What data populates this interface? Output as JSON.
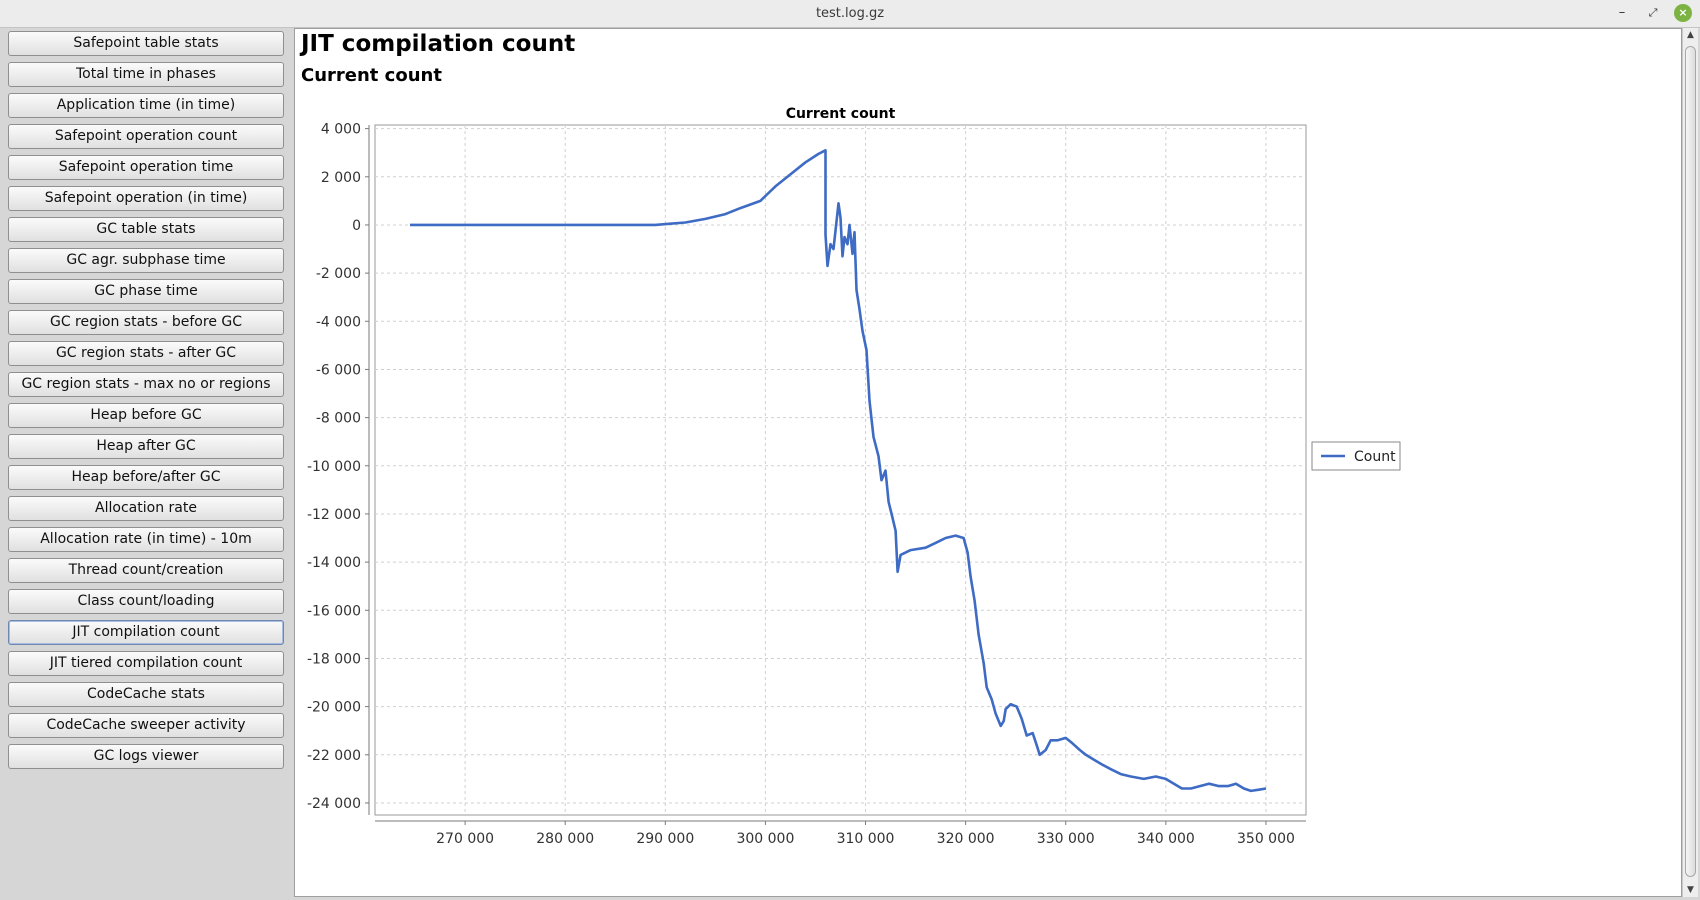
{
  "window": {
    "title": "test.log.gz"
  },
  "sidebar": {
    "items": [
      {
        "label": "Safepoint table stats"
      },
      {
        "label": "Total time in phases"
      },
      {
        "label": "Application time (in time)"
      },
      {
        "label": "Safepoint operation count"
      },
      {
        "label": "Safepoint operation time"
      },
      {
        "label": "Safepoint operation (in time)"
      },
      {
        "label": "GC table stats"
      },
      {
        "label": "GC agr. subphase time"
      },
      {
        "label": "GC phase time"
      },
      {
        "label": "GC region stats - before GC"
      },
      {
        "label": "GC region stats - after GC"
      },
      {
        "label": "GC region stats - max no or regions"
      },
      {
        "label": "Heap before GC"
      },
      {
        "label": "Heap after GC"
      },
      {
        "label": "Heap before/after GC"
      },
      {
        "label": "Allocation rate"
      },
      {
        "label": "Allocation rate (in time) - 10m"
      },
      {
        "label": "Thread count/creation"
      },
      {
        "label": "Class count/loading"
      },
      {
        "label": "JIT compilation count",
        "active": true
      },
      {
        "label": "JIT tiered compilation count"
      },
      {
        "label": "CodeCache stats"
      },
      {
        "label": "CodeCache sweeper activity"
      },
      {
        "label": "GC logs viewer"
      }
    ]
  },
  "main": {
    "title": "JIT compilation count",
    "subtitle": "Current count"
  },
  "chart_data": {
    "type": "line",
    "title": "Current count",
    "xlabel": "",
    "ylabel": "",
    "xlim": [
      261000,
      354000
    ],
    "ylim": [
      -24500,
      4150
    ],
    "x_ticks": [
      270000,
      280000,
      290000,
      300000,
      310000,
      320000,
      330000,
      340000,
      350000
    ],
    "x_tick_labels": [
      "270 000",
      "280 000",
      "290 000",
      "300 000",
      "310 000",
      "320 000",
      "330 000",
      "340 000",
      "350 000"
    ],
    "y_ticks": [
      4000,
      2000,
      0,
      -2000,
      -4000,
      -6000,
      -8000,
      -10000,
      -12000,
      -14000,
      -16000,
      -18000,
      -20000,
      -22000,
      -24000
    ],
    "y_tick_labels": [
      "4 000",
      "2 000",
      "0",
      "-2 000",
      "-4 000",
      "-6 000",
      "-8 000",
      "-10 000",
      "-12 000",
      "-14 000",
      "-16 000",
      "-18 000",
      "-20 000",
      "-22 000",
      "-24 000"
    ],
    "grid": true,
    "legend_position": "right",
    "series": [
      {
        "name": "Count",
        "color": "#3e6bc4",
        "points": [
          [
            264500,
            0
          ],
          [
            275000,
            0
          ],
          [
            285000,
            0
          ],
          [
            289000,
            0
          ],
          [
            290500,
            50
          ],
          [
            292000,
            100
          ],
          [
            294000,
            250
          ],
          [
            296000,
            450
          ],
          [
            297500,
            700
          ],
          [
            298500,
            850
          ],
          [
            299500,
            1000
          ],
          [
            300000,
            1200
          ],
          [
            301000,
            1600
          ],
          [
            302500,
            2100
          ],
          [
            304000,
            2600
          ],
          [
            305300,
            2950
          ],
          [
            306000,
            3100
          ],
          [
            306000,
            -400
          ],
          [
            306200,
            -1700
          ],
          [
            306500,
            -800
          ],
          [
            306800,
            -1000
          ],
          [
            307300,
            900
          ],
          [
            307500,
            300
          ],
          [
            307700,
            -1300
          ],
          [
            307900,
            -500
          ],
          [
            308200,
            -800
          ],
          [
            308400,
            0
          ],
          [
            308700,
            -1200
          ],
          [
            308900,
            -300
          ],
          [
            309100,
            -2700
          ],
          [
            309400,
            -3500
          ],
          [
            309700,
            -4400
          ],
          [
            310100,
            -5200
          ],
          [
            310400,
            -7300
          ],
          [
            310800,
            -8800
          ],
          [
            311300,
            -9600
          ],
          [
            311600,
            -10600
          ],
          [
            312000,
            -10200
          ],
          [
            312300,
            -11500
          ],
          [
            312600,
            -12000
          ],
          [
            313000,
            -12700
          ],
          [
            313200,
            -14400
          ],
          [
            313500,
            -13700
          ],
          [
            314500,
            -13500
          ],
          [
            316000,
            -13400
          ],
          [
            317000,
            -13200
          ],
          [
            318000,
            -13000
          ],
          [
            319000,
            -12900
          ],
          [
            319800,
            -13000
          ],
          [
            320200,
            -13600
          ],
          [
            320500,
            -14600
          ],
          [
            320900,
            -15600
          ],
          [
            321300,
            -17000
          ],
          [
            321800,
            -18200
          ],
          [
            322100,
            -19200
          ],
          [
            322600,
            -19700
          ],
          [
            323000,
            -20300
          ],
          [
            323500,
            -20800
          ],
          [
            323800,
            -20600
          ],
          [
            324000,
            -20100
          ],
          [
            324500,
            -19900
          ],
          [
            325100,
            -20000
          ],
          [
            325600,
            -20500
          ],
          [
            326100,
            -21200
          ],
          [
            326700,
            -21100
          ],
          [
            327100,
            -21600
          ],
          [
            327400,
            -22000
          ],
          [
            328000,
            -21800
          ],
          [
            328500,
            -21400
          ],
          [
            329200,
            -21400
          ],
          [
            330000,
            -21300
          ],
          [
            330600,
            -21500
          ],
          [
            331400,
            -21800
          ],
          [
            332000,
            -22000
          ],
          [
            332800,
            -22200
          ],
          [
            333600,
            -22400
          ],
          [
            334500,
            -22600
          ],
          [
            335500,
            -22800
          ],
          [
            336500,
            -22900
          ],
          [
            337800,
            -23000
          ],
          [
            339000,
            -22900
          ],
          [
            340000,
            -23000
          ],
          [
            340800,
            -23200
          ],
          [
            341600,
            -23400
          ],
          [
            342500,
            -23400
          ],
          [
            343400,
            -23300
          ],
          [
            344300,
            -23200
          ],
          [
            345300,
            -23300
          ],
          [
            346200,
            -23300
          ],
          [
            347000,
            -23200
          ],
          [
            347800,
            -23400
          ],
          [
            348500,
            -23500
          ],
          [
            349300,
            -23450
          ],
          [
            350000,
            -23400
          ]
        ]
      }
    ]
  }
}
